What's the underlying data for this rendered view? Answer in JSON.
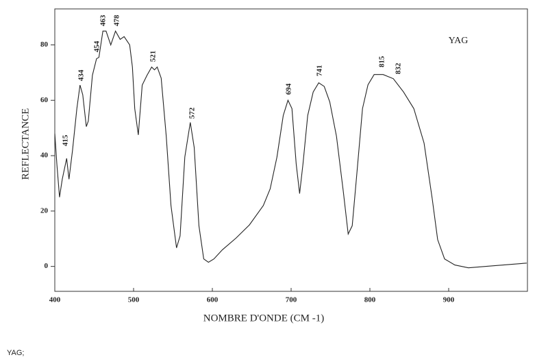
{
  "chart_data": {
    "type": "line",
    "xlabel": "NOMBRE D'ONDE (CM -1)",
    "ylabel": "REFLECTANCE",
    "sample_label": "YAG",
    "x": [
      400,
      402.6,
      406,
      409.5,
      415,
      418,
      422.5,
      428,
      432,
      435.5,
      440,
      442.5,
      447.7,
      453,
      456,
      461,
      465,
      471,
      477,
      483,
      488,
      495,
      498.5,
      501.5,
      506,
      511,
      517,
      523,
      526.5,
      530,
      535,
      541.5,
      547.5,
      554.5,
      559,
      565,
      572,
      577,
      583,
      589,
      595,
      602,
      612.7,
      630,
      647,
      664.7,
      673.4,
      682,
      690,
      696,
      701,
      706.4,
      710.8,
      715,
      721,
      728,
      735,
      742,
      749,
      757.6,
      766.3,
      772.4,
      777.6,
      783.7,
      790.6,
      797.6,
      805.4,
      816.7,
      829.7,
      842.7,
      855.7,
      868.8,
      879,
      886,
      894.8,
      907.8,
      925,
      955.6,
      999
    ],
    "series": [
      {
        "color": "#222222",
        "values": [
          48,
          37,
          25,
          31.5,
          39,
          31.5,
          42,
          57,
          65.5,
          62,
          50.5,
          52.5,
          69,
          75,
          75.5,
          85,
          85,
          80,
          85,
          82,
          83,
          80,
          72,
          57,
          47.5,
          65.5,
          69,
          72,
          71,
          72,
          68,
          47,
          22,
          6.7,
          11,
          39.5,
          52,
          43,
          14.7,
          2.7,
          1.5,
          2.7,
          6,
          10.2,
          15,
          22,
          28,
          39.5,
          54.5,
          60,
          57,
          37,
          26.3,
          37,
          54.5,
          63,
          66.3,
          65,
          59.4,
          47,
          27,
          11.7,
          14.7,
          34.5,
          57,
          65.6,
          69.3,
          69.3,
          67.8,
          63,
          57,
          44.5,
          24.6,
          9.7,
          2.7,
          0.5,
          -0.5,
          0.2,
          1.2
        ]
      }
    ],
    "xlim": [
      400,
      1000
    ],
    "ylim": [
      -9,
      93
    ],
    "xticks": [
      400,
      500,
      600,
      700,
      800,
      900
    ],
    "yticks": [
      0,
      20,
      40,
      60,
      80
    ],
    "annotations": [
      "415",
      "434",
      "454",
      "463",
      "478",
      "521",
      "572",
      "694",
      "741",
      "815",
      "832"
    ]
  },
  "caption": "YAG;"
}
